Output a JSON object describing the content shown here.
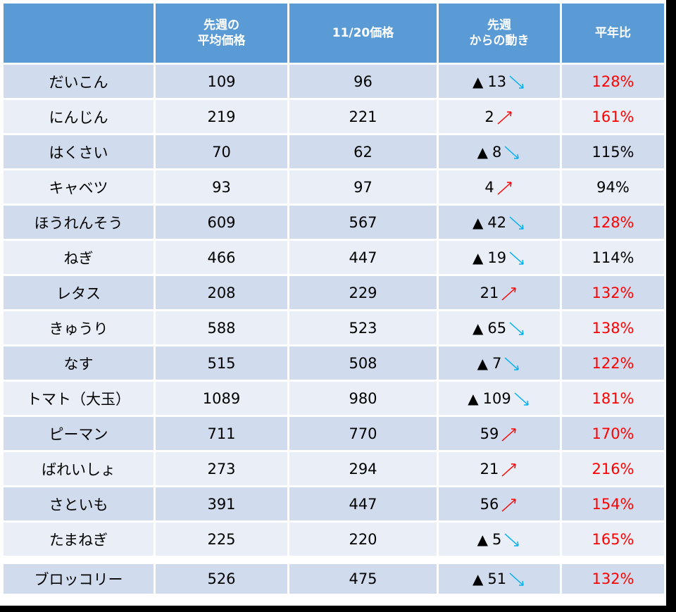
{
  "header": {
    "col_name": "",
    "col_last_week": [
      "先週の",
      "平均価格"
    ],
    "col_today": "11/20価格",
    "col_change": [
      "先週",
      "からの動き"
    ],
    "col_ratio": "平年比"
  },
  "colors": {
    "header_bg": "#5b9bd5",
    "row_odd": "#d0dcee",
    "row_even": "#e9eef7",
    "up_arrow": "#ff0000",
    "down_arrow": "#00b0f0",
    "ratio_high": "#ff0000"
  },
  "rows": [
    {
      "name": "だいこん",
      "last_week": "109",
      "today": "96",
      "decrease": true,
      "change": "13",
      "direction": "down",
      "ratio": "128%",
      "ratio_red": true
    },
    {
      "name": "にんじん",
      "last_week": "219",
      "today": "221",
      "decrease": false,
      "change": "2",
      "direction": "up",
      "ratio": "161%",
      "ratio_red": true
    },
    {
      "name": "はくさい",
      "last_week": "70",
      "today": "62",
      "decrease": true,
      "change": "8",
      "direction": "down",
      "ratio": "115%",
      "ratio_red": false
    },
    {
      "name": "キャベツ",
      "last_week": "93",
      "today": "97",
      "decrease": false,
      "change": "4",
      "direction": "up",
      "ratio": "94%",
      "ratio_red": false
    },
    {
      "name": "ほうれんそう",
      "last_week": "609",
      "today": "567",
      "decrease": true,
      "change": "42",
      "direction": "down",
      "ratio": "128%",
      "ratio_red": true
    },
    {
      "name": "ねぎ",
      "last_week": "466",
      "today": "447",
      "decrease": true,
      "change": "19",
      "direction": "down",
      "ratio": "114%",
      "ratio_red": false
    },
    {
      "name": "レタス",
      "last_week": "208",
      "today": "229",
      "decrease": false,
      "change": "21",
      "direction": "up",
      "ratio": "132%",
      "ratio_red": true
    },
    {
      "name": "きゅうり",
      "last_week": "588",
      "today": "523",
      "decrease": true,
      "change": "65",
      "direction": "down",
      "ratio": "138%",
      "ratio_red": true
    },
    {
      "name": "なす",
      "last_week": "515",
      "today": "508",
      "decrease": true,
      "change": "7",
      "direction": "down",
      "ratio": "122%",
      "ratio_red": true
    },
    {
      "name": "トマト（大玉）",
      "last_week": "1089",
      "today": "980",
      "decrease": true,
      "change": "109",
      "direction": "down",
      "ratio": "181%",
      "ratio_red": true
    },
    {
      "name": "ピーマン",
      "last_week": "711",
      "today": "770",
      "decrease": false,
      "change": "59",
      "direction": "up",
      "ratio": "170%",
      "ratio_red": true
    },
    {
      "name": "ばれいしょ",
      "last_week": "273",
      "today": "294",
      "decrease": false,
      "change": "21",
      "direction": "up",
      "ratio": "216%",
      "ratio_red": true
    },
    {
      "name": "さといも",
      "last_week": "391",
      "today": "447",
      "decrease": false,
      "change": "56",
      "direction": "up",
      "ratio": "154%",
      "ratio_red": true
    },
    {
      "name": "たまねぎ",
      "last_week": "225",
      "today": "220",
      "decrease": true,
      "change": "5",
      "direction": "down",
      "ratio": "165%",
      "ratio_red": true
    },
    {
      "name": "ブロッコリー",
      "last_week": "526",
      "today": "475",
      "decrease": true,
      "change": "51",
      "direction": "down",
      "ratio": "132%",
      "ratio_red": true
    }
  ],
  "symbols": {
    "decrease_marker": "▲"
  }
}
